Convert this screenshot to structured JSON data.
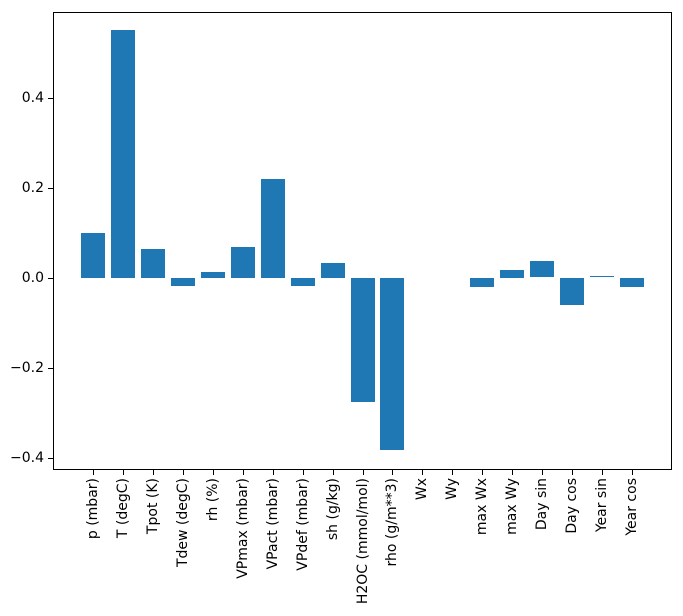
{
  "chart_data": {
    "type": "bar",
    "categories": [
      "p (mbar)",
      "T (degC)",
      "Tpot (K)",
      "Tdew (degC)",
      "rh (%)",
      "VPmax (mbar)",
      "VPact (mbar)",
      "VPdef (mbar)",
      "sh (g/kg)",
      "H2OC (mmol/mol)",
      "rho (g/m**3)",
      "Wx",
      "Wy",
      "max Wx",
      "max Wy",
      "Day sin",
      "Day cos",
      "Year sin",
      "Year cos"
    ],
    "values": [
      0.099,
      0.55,
      0.064,
      -0.017,
      0.013,
      0.069,
      0.219,
      -0.018,
      0.033,
      -0.276,
      -0.383,
      0.0,
      0.0,
      -0.02,
      0.018,
      0.036,
      -0.059,
      0.003,
      -0.02
    ],
    "yticks": [
      -0.4,
      -0.2,
      0.0,
      0.2,
      0.4
    ],
    "ytick_labels": [
      "−0.4",
      "−0.2",
      "0.0",
      "0.2",
      "0.4"
    ],
    "ylim": [
      -0.427,
      0.59
    ],
    "xlim": [
      -1.32,
      19.32
    ],
    "bar_color": "#1f77b4",
    "bar_width_fraction": 0.8,
    "x_tick_rotation": 90,
    "grid": false,
    "legend": null
  }
}
